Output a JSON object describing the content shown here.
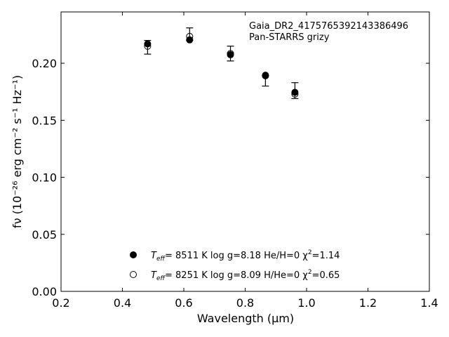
{
  "chart_data": {
    "type": "scatter",
    "annotation": [
      "Gaia_DR2_4175765392143386496",
      "Pan-STARRS grizy"
    ],
    "xlabel": "Wavelength (μm)",
    "ylabel": "fν (10⁻²⁶ erg cm⁻² s⁻¹ Hz⁻¹)",
    "xlim": [
      0.2,
      1.4
    ],
    "ylim": [
      0.0,
      0.245
    ],
    "xticks": [
      0.2,
      0.4,
      0.6,
      0.8,
      1.0,
      1.2,
      1.4
    ],
    "yticks": [
      0.0,
      0.05,
      0.1,
      0.15,
      0.2
    ],
    "xtick_labels": [
      "0.2",
      "0.4",
      "0.6",
      "0.8",
      "1.0",
      "1.2",
      "1.4"
    ],
    "ytick_labels": [
      "0.00",
      "0.05",
      "0.10",
      "0.15",
      "0.20"
    ],
    "grid": false,
    "legend_position": "lower-center",
    "observed": {
      "name": "",
      "x": [
        0.482,
        0.619,
        0.752,
        0.866,
        0.962
      ],
      "y": [
        0.2145,
        0.2245,
        0.2085,
        0.1865,
        0.1755
      ],
      "yerr_low": [
        0.0065,
        0.0045,
        0.0065,
        0.0065,
        0.0065
      ],
      "yerr_high": [
        0.0055,
        0.0065,
        0.0065,
        0.0025,
        0.0075
      ]
    },
    "series": [
      {
        "name": "T_eff=  8511 K  log g=8.18  He/H=0  χ²=1.14",
        "marker": "filled-circle",
        "x": [
          0.482,
          0.619,
          0.752,
          0.866,
          0.962
        ],
        "y": [
          0.217,
          0.2205,
          0.2075,
          0.1895,
          0.1745
        ]
      },
      {
        "name": "T_eff=  8251 K  log g=8.09  H/He=0  χ²=0.65",
        "marker": "open-circle",
        "x": [
          0.482,
          0.619,
          0.752,
          0.866,
          0.962
        ],
        "y": [
          0.215,
          0.2235,
          0.2085,
          0.189,
          0.173
        ]
      }
    ],
    "legend": [
      {
        "marker": "filled-circle",
        "teff_label": "T",
        "teff_sub": "eff",
        "text": "=  8511 K  log g=8.18  He/H=0  χ",
        "chi_sup": "2",
        "chi_val": "=1.14"
      },
      {
        "marker": "open-circle",
        "teff_label": "T",
        "teff_sub": "eff",
        "text": "=  8251 K  log g=8.09  H/He=0  χ",
        "chi_sup": "2",
        "chi_val": "=0.65"
      }
    ]
  }
}
